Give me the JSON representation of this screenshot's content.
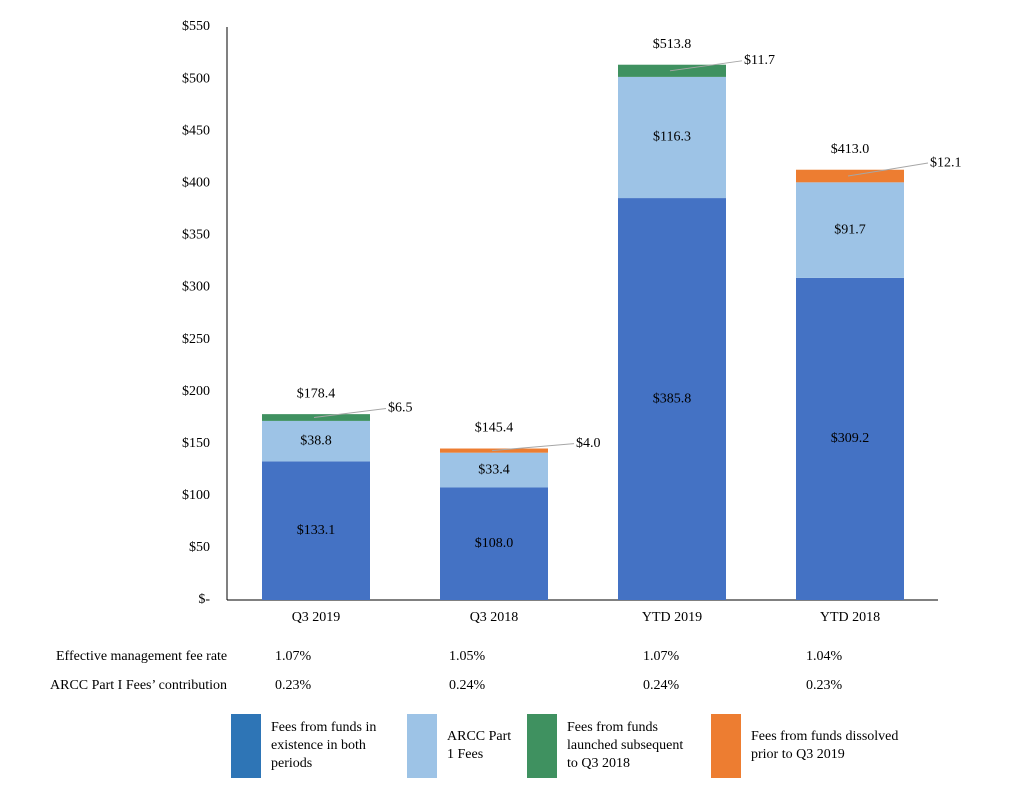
{
  "chart_data": {
    "type": "bar",
    "stacked": true,
    "categories": [
      "Q3 2019",
      "Q3 2018",
      "YTD 2019",
      "YTD 2018"
    ],
    "ylim": [
      0,
      550
    ],
    "yticks": [
      0,
      50,
      100,
      150,
      200,
      250,
      300,
      350,
      400,
      450,
      500,
      550
    ],
    "ytick_labels": [
      "$-",
      "$50",
      "$100",
      "$150",
      "$200",
      "$250",
      "$300",
      "$350",
      "$400",
      "$450",
      "$500",
      "$550"
    ],
    "series": [
      {
        "name": "Fees from funds in existence in both periods",
        "color": "#4472c4",
        "values": [
          133.1,
          108.0,
          385.8,
          309.2
        ],
        "labels": [
          "$133.1",
          "$108.0",
          "$385.8",
          "$309.2"
        ]
      },
      {
        "name": "ARCC Part 1 Fees",
        "color": "#9dc3e6",
        "values": [
          38.8,
          33.4,
          116.3,
          91.7
        ],
        "labels": [
          "$38.8",
          "$33.4",
          "$116.3",
          "$91.7"
        ]
      },
      {
        "name": "Fees from funds launched subsequent to Q3 2018",
        "color": "#3f9160",
        "values": [
          6.5,
          0,
          11.7,
          0
        ],
        "labels": [
          "$6.5",
          "",
          "$11.7",
          ""
        ]
      },
      {
        "name": "Fees from funds dissolved prior to Q3 2019",
        "color": "#ed7d31",
        "values": [
          0,
          4.0,
          0,
          12.1
        ],
        "labels": [
          "",
          "$4.0",
          "",
          "$12.1"
        ]
      }
    ],
    "totals": [
      "$178.4",
      "$145.4",
      "$513.8",
      "$413.0"
    ],
    "grid": false
  },
  "metrics": [
    {
      "label": "Effective management fee rate",
      "values": [
        "1.07%",
        "1.05%",
        "1.07%",
        "1.04%"
      ]
    },
    {
      "label": "ARCC Part I Fees’ contribution",
      "values": [
        "0.23%",
        "0.24%",
        "0.24%",
        "0.23%"
      ]
    }
  ],
  "legend": [
    {
      "line1": "Fees from funds in",
      "line2": "existence in both",
      "line3": "periods",
      "color": "#2e75b6"
    },
    {
      "line1": "ARCC Part",
      "line2": "1 Fees",
      "line3": "",
      "color": "#9dc3e6"
    },
    {
      "line1": "Fees from funds",
      "line2": "launched subsequent",
      "line3": "to Q3 2018",
      "color": "#3f9160"
    },
    {
      "line1": "Fees from funds dissolved",
      "line2": "prior to Q3 2019",
      "line3": "",
      "color": "#ed7d31"
    }
  ]
}
